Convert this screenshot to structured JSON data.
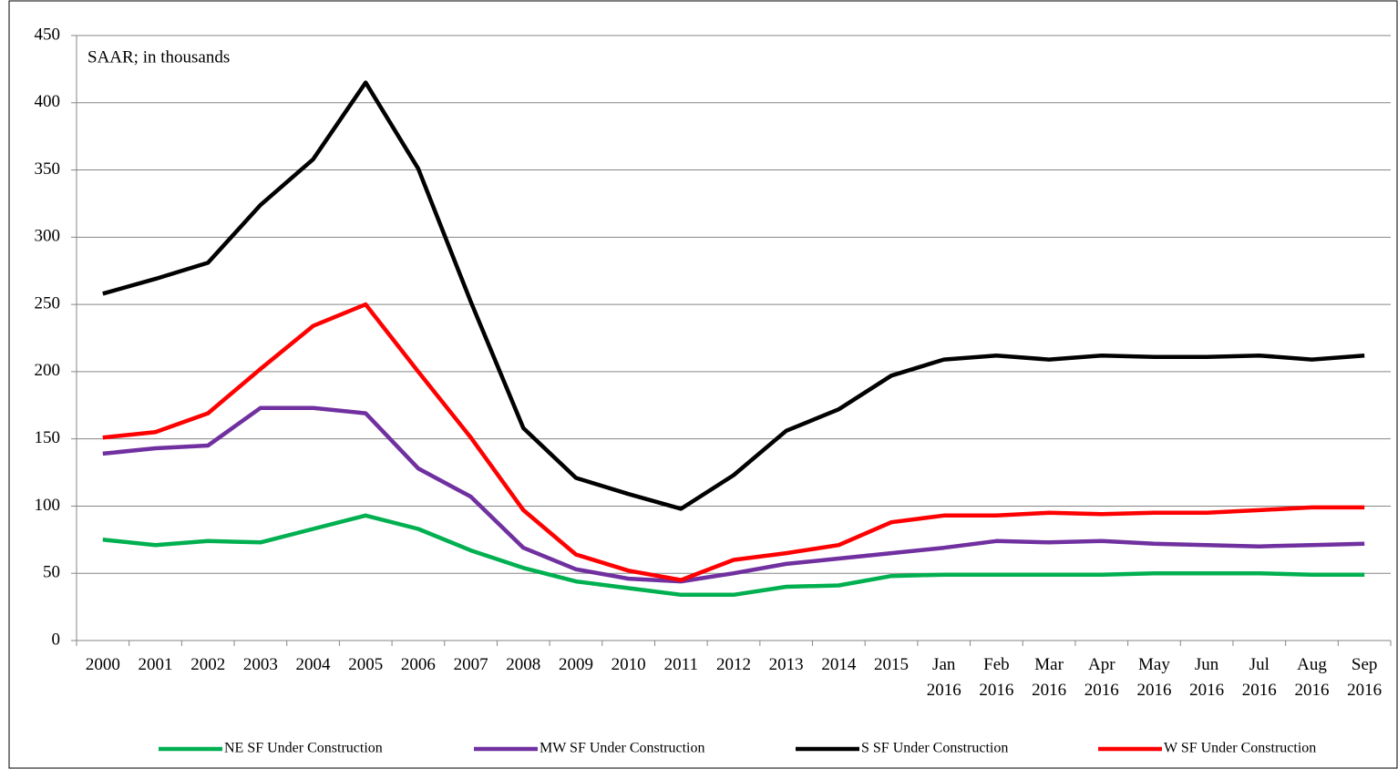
{
  "chart_data": {
    "type": "line",
    "annotation": "SAAR; in thousands",
    "categories": [
      "2000",
      "2001",
      "2002",
      "2003",
      "2004",
      "2005",
      "2006",
      "2007",
      "2008",
      "2009",
      "2010",
      "2011",
      "2012",
      "2013",
      "2014",
      "2015",
      "Jan\n2016",
      "Feb\n2016",
      "Mar\n2016",
      "Apr\n2016",
      "May\n2016",
      "Jun\n2016",
      "Jul\n2016",
      "Aug\n2016",
      "Sep\n2016"
    ],
    "series": [
      {
        "name": "NE SF Under Construction",
        "color": "#00b050",
        "values": [
          75,
          71,
          74,
          73,
          83,
          93,
          83,
          67,
          54,
          44,
          39,
          34,
          34,
          40,
          41,
          48,
          49,
          49,
          49,
          49,
          50,
          50,
          50,
          49,
          49
        ]
      },
      {
        "name": "MW SF Under Construction",
        "color": "#7030a0",
        "values": [
          139,
          143,
          145,
          173,
          173,
          169,
          128,
          107,
          69,
          53,
          46,
          44,
          50,
          57,
          61,
          65,
          69,
          74,
          73,
          74,
          72,
          71,
          70,
          71,
          72
        ]
      },
      {
        "name": "S SF Under Construction",
        "color": "#000000",
        "values": [
          258,
          269,
          281,
          324,
          358,
          415,
          351,
          252,
          158,
          121,
          109,
          98,
          123,
          156,
          172,
          197,
          209,
          212,
          209,
          212,
          211,
          211,
          212,
          209,
          212
        ]
      },
      {
        "name": "W SF Under Construction",
        "color": "#ff0000",
        "values": [
          151,
          155,
          169,
          202,
          234,
          250,
          200,
          151,
          97,
          64,
          52,
          45,
          60,
          65,
          71,
          88,
          93,
          93,
          95,
          94,
          95,
          95,
          97,
          99,
          99
        ]
      }
    ],
    "ylim": [
      0,
      450
    ],
    "yticks": [
      0,
      50,
      100,
      150,
      200,
      250,
      300,
      350,
      400,
      450
    ],
    "grid": true,
    "legend": "bottom"
  }
}
